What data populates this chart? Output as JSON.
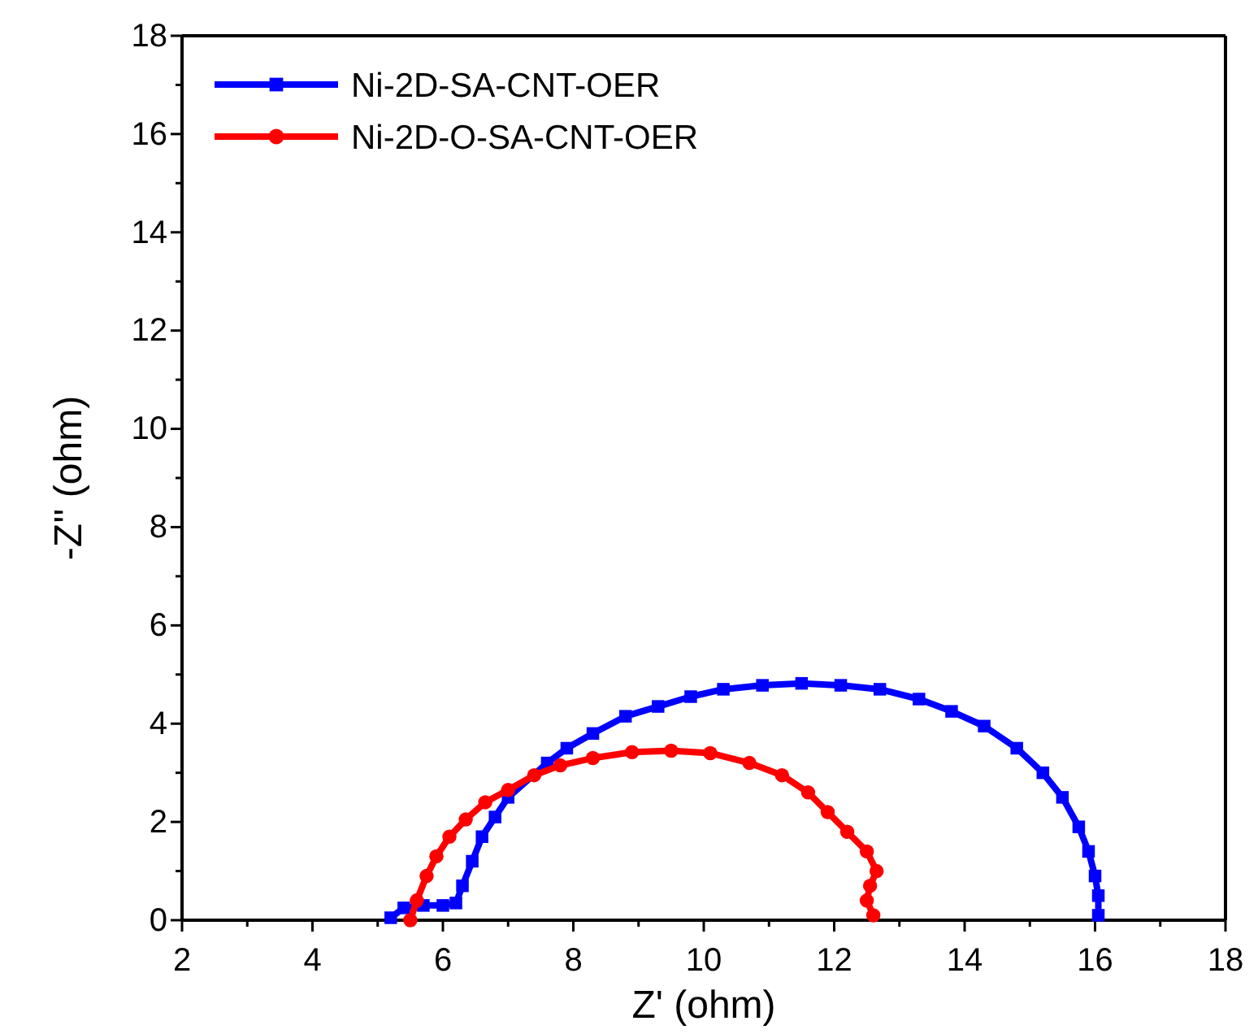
{
  "chart_data": {
    "type": "line",
    "xlabel": "Z' (ohm)",
    "ylabel": "-Z'' (ohm)",
    "xlim": [
      2,
      18
    ],
    "ylim": [
      0,
      18
    ],
    "xticks": [
      2,
      {
        "value": 3,
        "label": null
      },
      4,
      {
        "value": 5,
        "label": null
      },
      6,
      {
        "value": 7,
        "label": null
      },
      8,
      {
        "value": 9,
        "label": null
      },
      10,
      {
        "value": 11,
        "label": null
      },
      12,
      {
        "value": 13,
        "label": null
      },
      14,
      {
        "value": 15,
        "label": null
      },
      16,
      {
        "value": 17,
        "label": null
      },
      18
    ],
    "yticks": [
      0,
      {
        "value": 1,
        "label": null
      },
      2,
      {
        "value": 3,
        "label": null
      },
      4,
      {
        "value": 5,
        "label": null
      },
      6,
      {
        "value": 7,
        "label": null
      },
      8,
      {
        "value": 9,
        "label": null
      },
      10,
      {
        "value": 11,
        "label": null
      },
      12,
      {
        "value": 13,
        "label": null
      },
      14,
      {
        "value": 15,
        "label": null
      },
      16,
      {
        "value": 17,
        "label": null
      },
      18
    ],
    "legend": "top left",
    "grid": false,
    "line_style": "solid",
    "series": [
      {
        "name": "Ni-2D-SA-CNT-OER",
        "color": "#0000ff",
        "marker": "square",
        "x": [
          5.2,
          5.4,
          5.7,
          6.0,
          6.2,
          6.3,
          6.45,
          6.6,
          6.8,
          7.0,
          7.3,
          7.6,
          7.9,
          8.3,
          8.8,
          9.3,
          9.8,
          10.3,
          10.9,
          11.5,
          12.1,
          12.7,
          13.3,
          13.8,
          14.3,
          14.8,
          15.2,
          15.5,
          15.75,
          15.9,
          16.0,
          16.05,
          16.05
        ],
        "values": [
          0.05,
          0.25,
          0.3,
          0.3,
          0.35,
          0.7,
          1.2,
          1.7,
          2.1,
          2.5,
          null,
          3.2,
          3.5,
          3.8,
          4.15,
          4.35,
          4.55,
          4.7,
          4.78,
          4.82,
          4.78,
          4.7,
          4.5,
          4.25,
          3.95,
          3.5,
          3.0,
          2.5,
          1.9,
          1.4,
          0.9,
          0.5,
          0.1
        ]
      },
      {
        "name": "Ni-2D-O-SA-CNT-OER",
        "color": "#ff0000",
        "marker": "circle",
        "x": [
          5.5,
          5.6,
          5.75,
          5.9,
          6.1,
          6.35,
          6.65,
          7.0,
          7.4,
          7.8,
          8.3,
          8.9,
          9.5,
          10.1,
          10.7,
          11.2,
          11.6,
          11.9,
          12.2,
          12.5,
          12.65,
          12.55,
          12.5,
          12.6
        ],
        "values": [
          0.0,
          0.4,
          0.9,
          1.3,
          1.7,
          2.05,
          2.4,
          2.65,
          2.95,
          3.15,
          3.3,
          3.42,
          3.45,
          3.4,
          3.2,
          2.95,
          2.6,
          2.2,
          1.8,
          1.4,
          1.0,
          0.7,
          0.4,
          0.1
        ]
      }
    ]
  }
}
